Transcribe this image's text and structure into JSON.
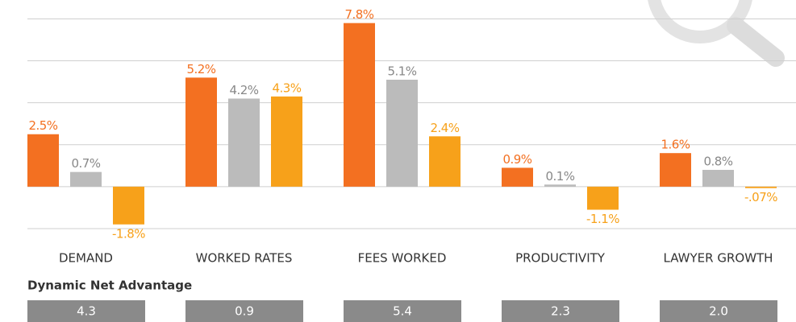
{
  "chart_data": {
    "type": "bar",
    "categories": [
      "DEMAND",
      "WORKED RATES",
      "FEES WORKED",
      "PRODUCTIVITY",
      "LAWYER GROWTH"
    ],
    "series": [
      {
        "color": "#f37021",
        "values": [
          2.5,
          5.2,
          7.8,
          0.9,
          1.6
        ],
        "value_labels": [
          "2.5%",
          "5.2%",
          "7.8%",
          "0.9%",
          "1.6%"
        ]
      },
      {
        "color": "#bbbbbb",
        "values": [
          0.7,
          4.2,
          5.1,
          0.1,
          0.8
        ],
        "value_labels": [
          "0.7%",
          "4.2%",
          "5.1%",
          "0.1%",
          "0.8%"
        ]
      },
      {
        "color": "#f7a11a",
        "values": [
          -1.8,
          4.3,
          2.4,
          -1.1,
          -0.07
        ],
        "value_labels": [
          "-1.8%",
          "4.3%",
          "2.4%",
          "-1.1%",
          "-.07%"
        ]
      }
    ],
    "ylim": [
      -2.5,
      8.9
    ],
    "yticks": [
      -2,
      0,
      2,
      4,
      6,
      8
    ],
    "grid": true
  },
  "net_advantage": {
    "title": "Dynamic Net Advantage",
    "values": [
      "4.3",
      "0.9",
      "5.4",
      "2.3",
      "2.0"
    ]
  }
}
